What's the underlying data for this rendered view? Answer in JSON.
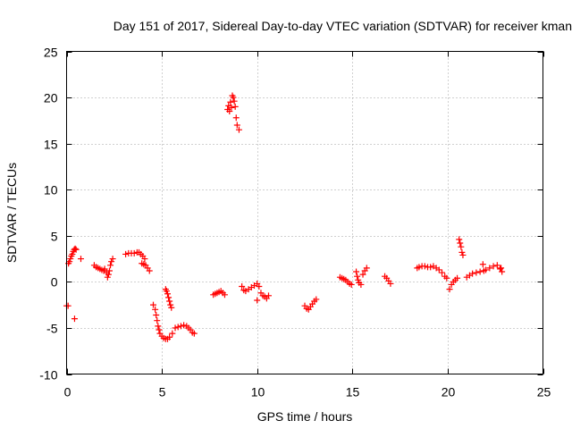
{
  "chart_data": {
    "type": "scatter",
    "title": "Day 151 of 2017, Sidereal Day-to-day VTEC variation (SDTVAR) for receiver kman",
    "xlabel": "GPS time / hours",
    "ylabel": "SDTVAR / TECUs",
    "xlim": [
      0,
      25
    ],
    "ylim": [
      -10,
      25
    ],
    "xticks": [
      0,
      5,
      10,
      15,
      20,
      25
    ],
    "yticks": [
      -10,
      -5,
      0,
      5,
      10,
      15,
      20,
      25
    ],
    "grid": true,
    "marker": "plus",
    "color": "#ff0000",
    "series": [
      {
        "name": "SDTVAR",
        "points": [
          [
            0.0,
            -2.6
          ],
          [
            0.08,
            -2.6
          ],
          [
            0.1,
            2.0
          ],
          [
            0.15,
            2.2
          ],
          [
            0.2,
            2.5
          ],
          [
            0.25,
            2.8
          ],
          [
            0.3,
            3.0
          ],
          [
            0.35,
            3.3
          ],
          [
            0.4,
            3.5
          ],
          [
            0.45,
            3.6
          ],
          [
            0.5,
            3.5
          ],
          [
            0.42,
            -4.0
          ],
          [
            0.75,
            2.5
          ],
          [
            1.45,
            1.8
          ],
          [
            1.55,
            1.6
          ],
          [
            1.65,
            1.5
          ],
          [
            1.75,
            1.4
          ],
          [
            1.85,
            1.3
          ],
          [
            1.95,
            1.2
          ],
          [
            2.0,
            1.4
          ],
          [
            2.1,
            1.0
          ],
          [
            2.15,
            0.5
          ],
          [
            2.2,
            0.8
          ],
          [
            2.25,
            1.2
          ],
          [
            2.3,
            1.8
          ],
          [
            2.35,
            2.2
          ],
          [
            2.42,
            2.5
          ],
          [
            3.1,
            3.0
          ],
          [
            3.25,
            3.1
          ],
          [
            3.4,
            3.1
          ],
          [
            3.55,
            3.1
          ],
          [
            3.7,
            3.2
          ],
          [
            3.8,
            3.2
          ],
          [
            3.9,
            3.0
          ],
          [
            4.0,
            2.8
          ],
          [
            4.1,
            2.5
          ],
          [
            3.95,
            2.0
          ],
          [
            4.05,
            1.9
          ],
          [
            4.15,
            1.8
          ],
          [
            4.25,
            1.5
          ],
          [
            4.35,
            1.2
          ],
          [
            4.55,
            -2.5
          ],
          [
            4.65,
            -3.0
          ],
          [
            4.7,
            -3.6
          ],
          [
            4.75,
            -4.2
          ],
          [
            4.8,
            -4.8
          ],
          [
            4.85,
            -5.2
          ],
          [
            4.9,
            -5.6
          ],
          [
            5.0,
            -5.9
          ],
          [
            5.1,
            -6.1
          ],
          [
            5.2,
            -6.2
          ],
          [
            5.3,
            -6.2
          ],
          [
            5.4,
            -6.0
          ],
          [
            5.55,
            -5.6
          ],
          [
            5.2,
            -0.8
          ],
          [
            5.25,
            -1.0
          ],
          [
            5.3,
            -1.3
          ],
          [
            5.35,
            -1.7
          ],
          [
            5.4,
            -2.1
          ],
          [
            5.45,
            -2.5
          ],
          [
            5.5,
            -2.8
          ],
          [
            5.7,
            -5.0
          ],
          [
            5.85,
            -4.9
          ],
          [
            6.0,
            -4.8
          ],
          [
            6.15,
            -4.7
          ],
          [
            6.3,
            -4.8
          ],
          [
            6.4,
            -5.0
          ],
          [
            6.5,
            -5.2
          ],
          [
            6.6,
            -5.5
          ],
          [
            6.7,
            -5.6
          ],
          [
            7.7,
            -1.4
          ],
          [
            7.8,
            -1.3
          ],
          [
            7.9,
            -1.2
          ],
          [
            8.0,
            -1.1
          ],
          [
            8.1,
            -1.0
          ],
          [
            8.2,
            -1.2
          ],
          [
            8.3,
            -1.4
          ],
          [
            8.45,
            18.7
          ],
          [
            8.5,
            19.1
          ],
          [
            8.55,
            18.5
          ],
          [
            8.6,
            19.5
          ],
          [
            8.65,
            18.9
          ],
          [
            8.7,
            20.2
          ],
          [
            8.75,
            20.0
          ],
          [
            8.8,
            19.6
          ],
          [
            8.85,
            19.0
          ],
          [
            8.9,
            17.8
          ],
          [
            8.95,
            17.0
          ],
          [
            9.05,
            16.5
          ],
          [
            9.2,
            -0.5
          ],
          [
            9.3,
            -0.9
          ],
          [
            9.4,
            -1.0
          ],
          [
            9.55,
            -0.8
          ],
          [
            9.7,
            -0.6
          ],
          [
            9.85,
            -0.4
          ],
          [
            10.0,
            -0.2
          ],
          [
            10.1,
            -0.5
          ],
          [
            10.0,
            -2.0
          ],
          [
            10.2,
            -1.2
          ],
          [
            10.3,
            -1.5
          ],
          [
            10.4,
            -1.6
          ],
          [
            10.5,
            -1.8
          ],
          [
            10.6,
            -1.5
          ],
          [
            12.5,
            -2.6
          ],
          [
            12.6,
            -2.9
          ],
          [
            12.7,
            -3.0
          ],
          [
            12.8,
            -2.7
          ],
          [
            12.9,
            -2.4
          ],
          [
            13.0,
            -2.1
          ],
          [
            13.1,
            -1.9
          ],
          [
            14.35,
            0.5
          ],
          [
            14.45,
            0.4
          ],
          [
            14.55,
            0.3
          ],
          [
            14.65,
            0.2
          ],
          [
            14.75,
            0.0
          ],
          [
            14.85,
            -0.2
          ],
          [
            14.95,
            -0.3
          ],
          [
            15.2,
            1.1
          ],
          [
            15.25,
            0.6
          ],
          [
            15.3,
            0.2
          ],
          [
            15.35,
            -0.1
          ],
          [
            15.45,
            -0.3
          ],
          [
            15.55,
            0.8
          ],
          [
            15.65,
            1.2
          ],
          [
            15.75,
            1.5
          ],
          [
            16.7,
            0.6
          ],
          [
            16.8,
            0.4
          ],
          [
            16.9,
            0.1
          ],
          [
            17.0,
            -0.2
          ],
          [
            18.4,
            1.5
          ],
          [
            18.5,
            1.6
          ],
          [
            18.65,
            1.7
          ],
          [
            18.8,
            1.7
          ],
          [
            18.95,
            1.6
          ],
          [
            19.1,
            1.6
          ],
          [
            19.25,
            1.7
          ],
          [
            19.4,
            1.5
          ],
          [
            19.55,
            1.3
          ],
          [
            19.7,
            1.0
          ],
          [
            19.85,
            0.6
          ],
          [
            19.95,
            0.4
          ],
          [
            20.1,
            -0.8
          ],
          [
            20.2,
            -0.3
          ],
          [
            20.3,
            0.0
          ],
          [
            20.4,
            0.2
          ],
          [
            20.5,
            0.4
          ],
          [
            20.6,
            4.6
          ],
          [
            20.65,
            4.2
          ],
          [
            20.7,
            3.8
          ],
          [
            20.75,
            3.2
          ],
          [
            20.8,
            2.9
          ],
          [
            21.0,
            0.5
          ],
          [
            21.15,
            0.7
          ],
          [
            21.3,
            0.9
          ],
          [
            21.5,
            1.0
          ],
          [
            21.7,
            1.1
          ],
          [
            21.9,
            1.2
          ],
          [
            21.85,
            1.9
          ],
          [
            22.0,
            1.3
          ],
          [
            22.2,
            1.5
          ],
          [
            22.4,
            1.7
          ],
          [
            22.6,
            1.8
          ],
          [
            22.8,
            1.5
          ],
          [
            22.85,
            1.1
          ],
          [
            22.75,
            1.4
          ]
        ]
      }
    ]
  }
}
